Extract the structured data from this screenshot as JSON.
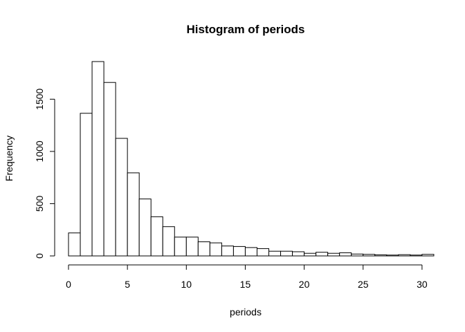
{
  "chart_data": {
    "type": "bar",
    "title": "Histogram of periods",
    "xlabel": "periods",
    "ylabel": "Frequency",
    "bin_width": 1,
    "bins_start": 0,
    "values": [
      220,
      1365,
      1860,
      1660,
      1125,
      795,
      545,
      375,
      280,
      180,
      180,
      135,
      125,
      95,
      90,
      80,
      70,
      45,
      45,
      40,
      25,
      35,
      25,
      30,
      18,
      15,
      10,
      8,
      12,
      8,
      15
    ],
    "xlim": [
      0,
      31
    ],
    "ylim": [
      0,
      1860
    ],
    "x_ticks": [
      "0",
      "5",
      "10",
      "15",
      "20",
      "25",
      "30"
    ],
    "y_ticks": [
      "0",
      "500",
      "1000",
      "1500"
    ],
    "grid": false,
    "legend": "none"
  }
}
